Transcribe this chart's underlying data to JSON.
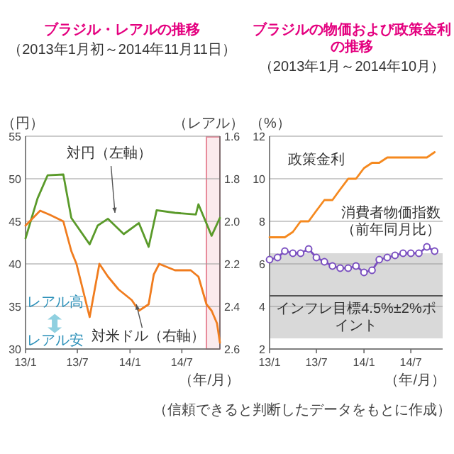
{
  "chart_data": [
    {
      "type": "line",
      "title": "ブラジル・レアルの推移",
      "subtitle": "（2013年1月初～2014年11月11日）",
      "xlabel": "（年/月）",
      "ylabel": "（円）",
      "y2label": "（レアル）",
      "xlim": [
        "2013-01-01",
        "2014-11-11"
      ],
      "xticks": [
        {
          "value": "2013-01-01",
          "label": "13/1"
        },
        {
          "value": "2013-07-01",
          "label": "13/7"
        },
        {
          "value": "2014-01-01",
          "label": "14/1"
        },
        {
          "value": "2014-07-01",
          "label": "14/7"
        }
      ],
      "ylim": [
        30,
        55
      ],
      "yticks": [
        30,
        35,
        40,
        45,
        50,
        55
      ],
      "y2lim": [
        2.6,
        1.6
      ],
      "y2ticks": [
        1.6,
        1.8,
        {
          "value": 2,
          "label": "2.0"
        },
        2.2,
        2.4,
        2.6
      ],
      "grid": "y",
      "series": [
        {
          "name": "対円（左軸）",
          "color": "#5a9a2a",
          "x": [
            "2013-01-01",
            "2013-02-12",
            "2013-03-19",
            "2013-05-13",
            "2013-06-10",
            "2013-08-13",
            "2013-09-10",
            "2013-10-16",
            "2013-12-10",
            "2014-02-01",
            "2014-03-07",
            "2014-04-04",
            "2014-06-07",
            "2014-08-19",
            "2014-08-28",
            "2014-10-13",
            "2014-11-11"
          ],
          "values": [
            43,
            47.7,
            50.4,
            50.5,
            45.4,
            42.3,
            44.5,
            45.3,
            43.5,
            44.8,
            42,
            46.3,
            46,
            45.8,
            47,
            43.3,
            45.4
          ]
        },
        {
          "name": "対米ドル（右軸）",
          "color": "#f07c1e",
          "axis": "y2",
          "x": [
            "2013-01-01",
            "2013-02-21",
            "2013-03-28",
            "2013-05-13",
            "2013-06-10",
            "2013-06-28",
            "2013-08-13",
            "2013-09-16",
            "2013-10-16",
            "2013-11-22",
            "2014-01-07",
            "2014-02-01",
            "2014-03-07",
            "2014-03-25",
            "2014-04-13",
            "2014-06-07",
            "2014-08-01",
            "2014-08-28",
            "2014-09-25",
            "2014-10-13",
            "2014-11-01",
            "2014-11-11"
          ],
          "values": [
            2.02,
            1.95,
            1.97,
            2.0,
            2.14,
            2.2,
            2.45,
            2.2,
            2.26,
            2.32,
            2.37,
            2.42,
            2.39,
            2.25,
            2.2,
            2.23,
            2.23,
            2.26,
            2.39,
            2.42,
            2.48,
            2.57
          ]
        }
      ],
      "annotations": [
        "レアル高",
        "レアル安"
      ],
      "bands": [
        {
          "axis": "x",
          "from": "2014-09-25",
          "to": "2014-11-11",
          "color": "#e88a9a"
        }
      ]
    },
    {
      "type": "line",
      "title": "ブラジルの物価および政策金利の推移",
      "subtitle": "（2013年1月～2014年10月）",
      "xlabel": "（年/月）",
      "ylabel": "（%）",
      "xlim": [
        "2013-01",
        "2014-11"
      ],
      "xticks": [
        {
          "value": "2013-01",
          "label": "13/1"
        },
        {
          "value": "2013-07",
          "label": "13/7"
        },
        {
          "value": "2014-01",
          "label": "14/1"
        },
        {
          "value": "2014-07",
          "label": "14/7"
        }
      ],
      "ylim": [
        2,
        12
      ],
      "yticks": [
        2,
        4,
        6,
        8,
        10,
        12
      ],
      "grid": "y",
      "series": [
        {
          "name": "政策金利",
          "color": "#f5891f",
          "x": [
            "2013-01",
            "2013-02",
            "2013-03",
            "2013-04",
            "2013-05",
            "2013-06",
            "2013-07",
            "2013-08",
            "2013-09",
            "2013-10",
            "2013-11",
            "2013-12",
            "2014-01",
            "2014-02",
            "2014-03",
            "2014-04",
            "2014-05",
            "2014-06",
            "2014-07",
            "2014-08",
            "2014-09",
            "2014-10"
          ],
          "values": [
            7.25,
            7.25,
            7.25,
            7.5,
            8,
            8,
            8.5,
            9,
            9,
            9.5,
            10,
            10,
            10.5,
            10.75,
            10.75,
            11,
            11,
            11,
            11,
            11,
            11,
            11.25
          ]
        },
        {
          "name": "消費者物価指数（前年同月比）",
          "color": "#7a4fc0",
          "marker": "circle",
          "x": [
            "2013-01",
            "2013-02",
            "2013-03",
            "2013-04",
            "2013-05",
            "2013-06",
            "2013-07",
            "2013-08",
            "2013-09",
            "2013-10",
            "2013-11",
            "2013-12",
            "2014-01",
            "2014-02",
            "2014-03",
            "2014-04",
            "2014-05",
            "2014-06",
            "2014-07",
            "2014-08",
            "2014-09",
            "2014-10"
          ],
          "values": [
            6.2,
            6.3,
            6.6,
            6.5,
            6.5,
            6.7,
            6.3,
            6.1,
            5.9,
            5.8,
            5.8,
            5.9,
            5.6,
            5.7,
            6.2,
            6.3,
            6.4,
            6.5,
            6.5,
            6.5,
            6.8,
            6.6
          ]
        }
      ],
      "bands": [
        {
          "axis": "y",
          "from": 2.5,
          "to": 6.5,
          "label": "インフレ目標4.5%±2%ポイント",
          "color": "#d9d9d9"
        }
      ],
      "ref_lines": [
        {
          "axis": "y",
          "value": 4.5,
          "color": "#555555"
        }
      ],
      "annotations": [
        "（信頼できると判断したデータをもとに作成）"
      ]
    }
  ]
}
